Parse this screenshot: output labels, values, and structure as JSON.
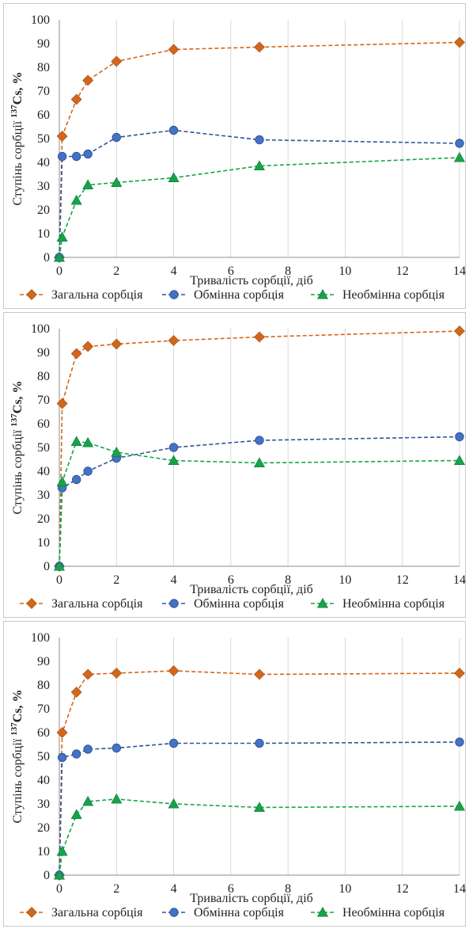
{
  "chart_data": [
    {
      "type": "line",
      "x": [
        0,
        0.1,
        0.6,
        1,
        2,
        4,
        7,
        14
      ],
      "xlabel": "Тривалість сорбції, діб",
      "ylabel_parts": [
        "Ступінь сорбції ",
        "137",
        "Cs, %"
      ],
      "xlim": [
        0,
        14
      ],
      "ylim": [
        0,
        100
      ],
      "xticks": [
        0,
        2,
        4,
        6,
        8,
        10,
        12,
        14
      ],
      "yticks": [
        0,
        10,
        20,
        30,
        40,
        50,
        60,
        70,
        80,
        90,
        100
      ],
      "grid": "vertical",
      "legend": "bottom",
      "series": [
        {
          "name": "Загальна сорбція",
          "color": "#d4661a",
          "marker": "diamond",
          "values": [
            0,
            51,
            66.5,
            74.5,
            82.5,
            87.5,
            88.5,
            90.5
          ]
        },
        {
          "name": "Обмінна сорбція",
          "color": "#2f5597",
          "marker": "circle",
          "values": [
            0,
            42.5,
            42.5,
            43.5,
            50.5,
            53.5,
            49.5,
            48
          ]
        },
        {
          "name": "Необмінна сорбція",
          "color": "#16a34a",
          "marker": "triangle",
          "values": [
            0,
            8.5,
            24,
            30.5,
            31.5,
            33.5,
            38.5,
            42
          ]
        }
      ]
    },
    {
      "type": "line",
      "x": [
        0,
        0.1,
        0.6,
        1,
        2,
        4,
        7,
        14
      ],
      "xlabel": "Тривалість сорбції, діб",
      "ylabel_parts": [
        "Ступінь сорбції ",
        "137",
        "Cs, %"
      ],
      "xlim": [
        0,
        14
      ],
      "ylim": [
        0,
        100
      ],
      "xticks": [
        0,
        2,
        4,
        6,
        8,
        10,
        12,
        14
      ],
      "yticks": [
        0,
        10,
        20,
        30,
        40,
        50,
        60,
        70,
        80,
        90,
        100
      ],
      "grid": "vertical",
      "legend": "bottom",
      "series": [
        {
          "name": "Загальна сорбція",
          "color": "#d4661a",
          "marker": "diamond",
          "values": [
            0,
            68.5,
            89.5,
            92.5,
            93.5,
            95,
            96.5,
            99
          ]
        },
        {
          "name": "Обмінна сорбція",
          "color": "#2f5597",
          "marker": "circle",
          "values": [
            0,
            33,
            36.5,
            40,
            45.5,
            50,
            53,
            54.5
          ]
        },
        {
          "name": "Необмінна сорбція",
          "color": "#16a34a",
          "marker": "triangle",
          "values": [
            0,
            35.5,
            52.5,
            52,
            48,
            44.5,
            43.5,
            44.5
          ]
        }
      ]
    },
    {
      "type": "line",
      "x": [
        0,
        0.1,
        0.6,
        1,
        2,
        4,
        7,
        14
      ],
      "xlabel": "Тривалість сорбції, діб",
      "ylabel_parts": [
        "Ступінь сорбції ",
        "137",
        "Cs, %"
      ],
      "xlim": [
        0,
        14
      ],
      "ylim": [
        0,
        100
      ],
      "xticks": [
        0,
        2,
        4,
        6,
        8,
        10,
        12,
        14
      ],
      "yticks": [
        0,
        10,
        20,
        30,
        40,
        50,
        60,
        70,
        80,
        90,
        100
      ],
      "grid": "vertical",
      "legend": "bottom",
      "series": [
        {
          "name": "Загальна сорбція",
          "color": "#d4661a",
          "marker": "diamond",
          "values": [
            0,
            60,
            77,
            84.5,
            85,
            86,
            84.5,
            85
          ]
        },
        {
          "name": "Обмінна сорбція",
          "color": "#2f5597",
          "marker": "circle",
          "values": [
            0,
            49.5,
            51,
            53,
            53.5,
            55.5,
            55.5,
            56
          ]
        },
        {
          "name": "Необмінна сорбція",
          "color": "#16a34a",
          "marker": "triangle",
          "values": [
            0,
            10,
            25.5,
            31,
            32,
            30,
            28.5,
            29
          ]
        }
      ]
    }
  ]
}
